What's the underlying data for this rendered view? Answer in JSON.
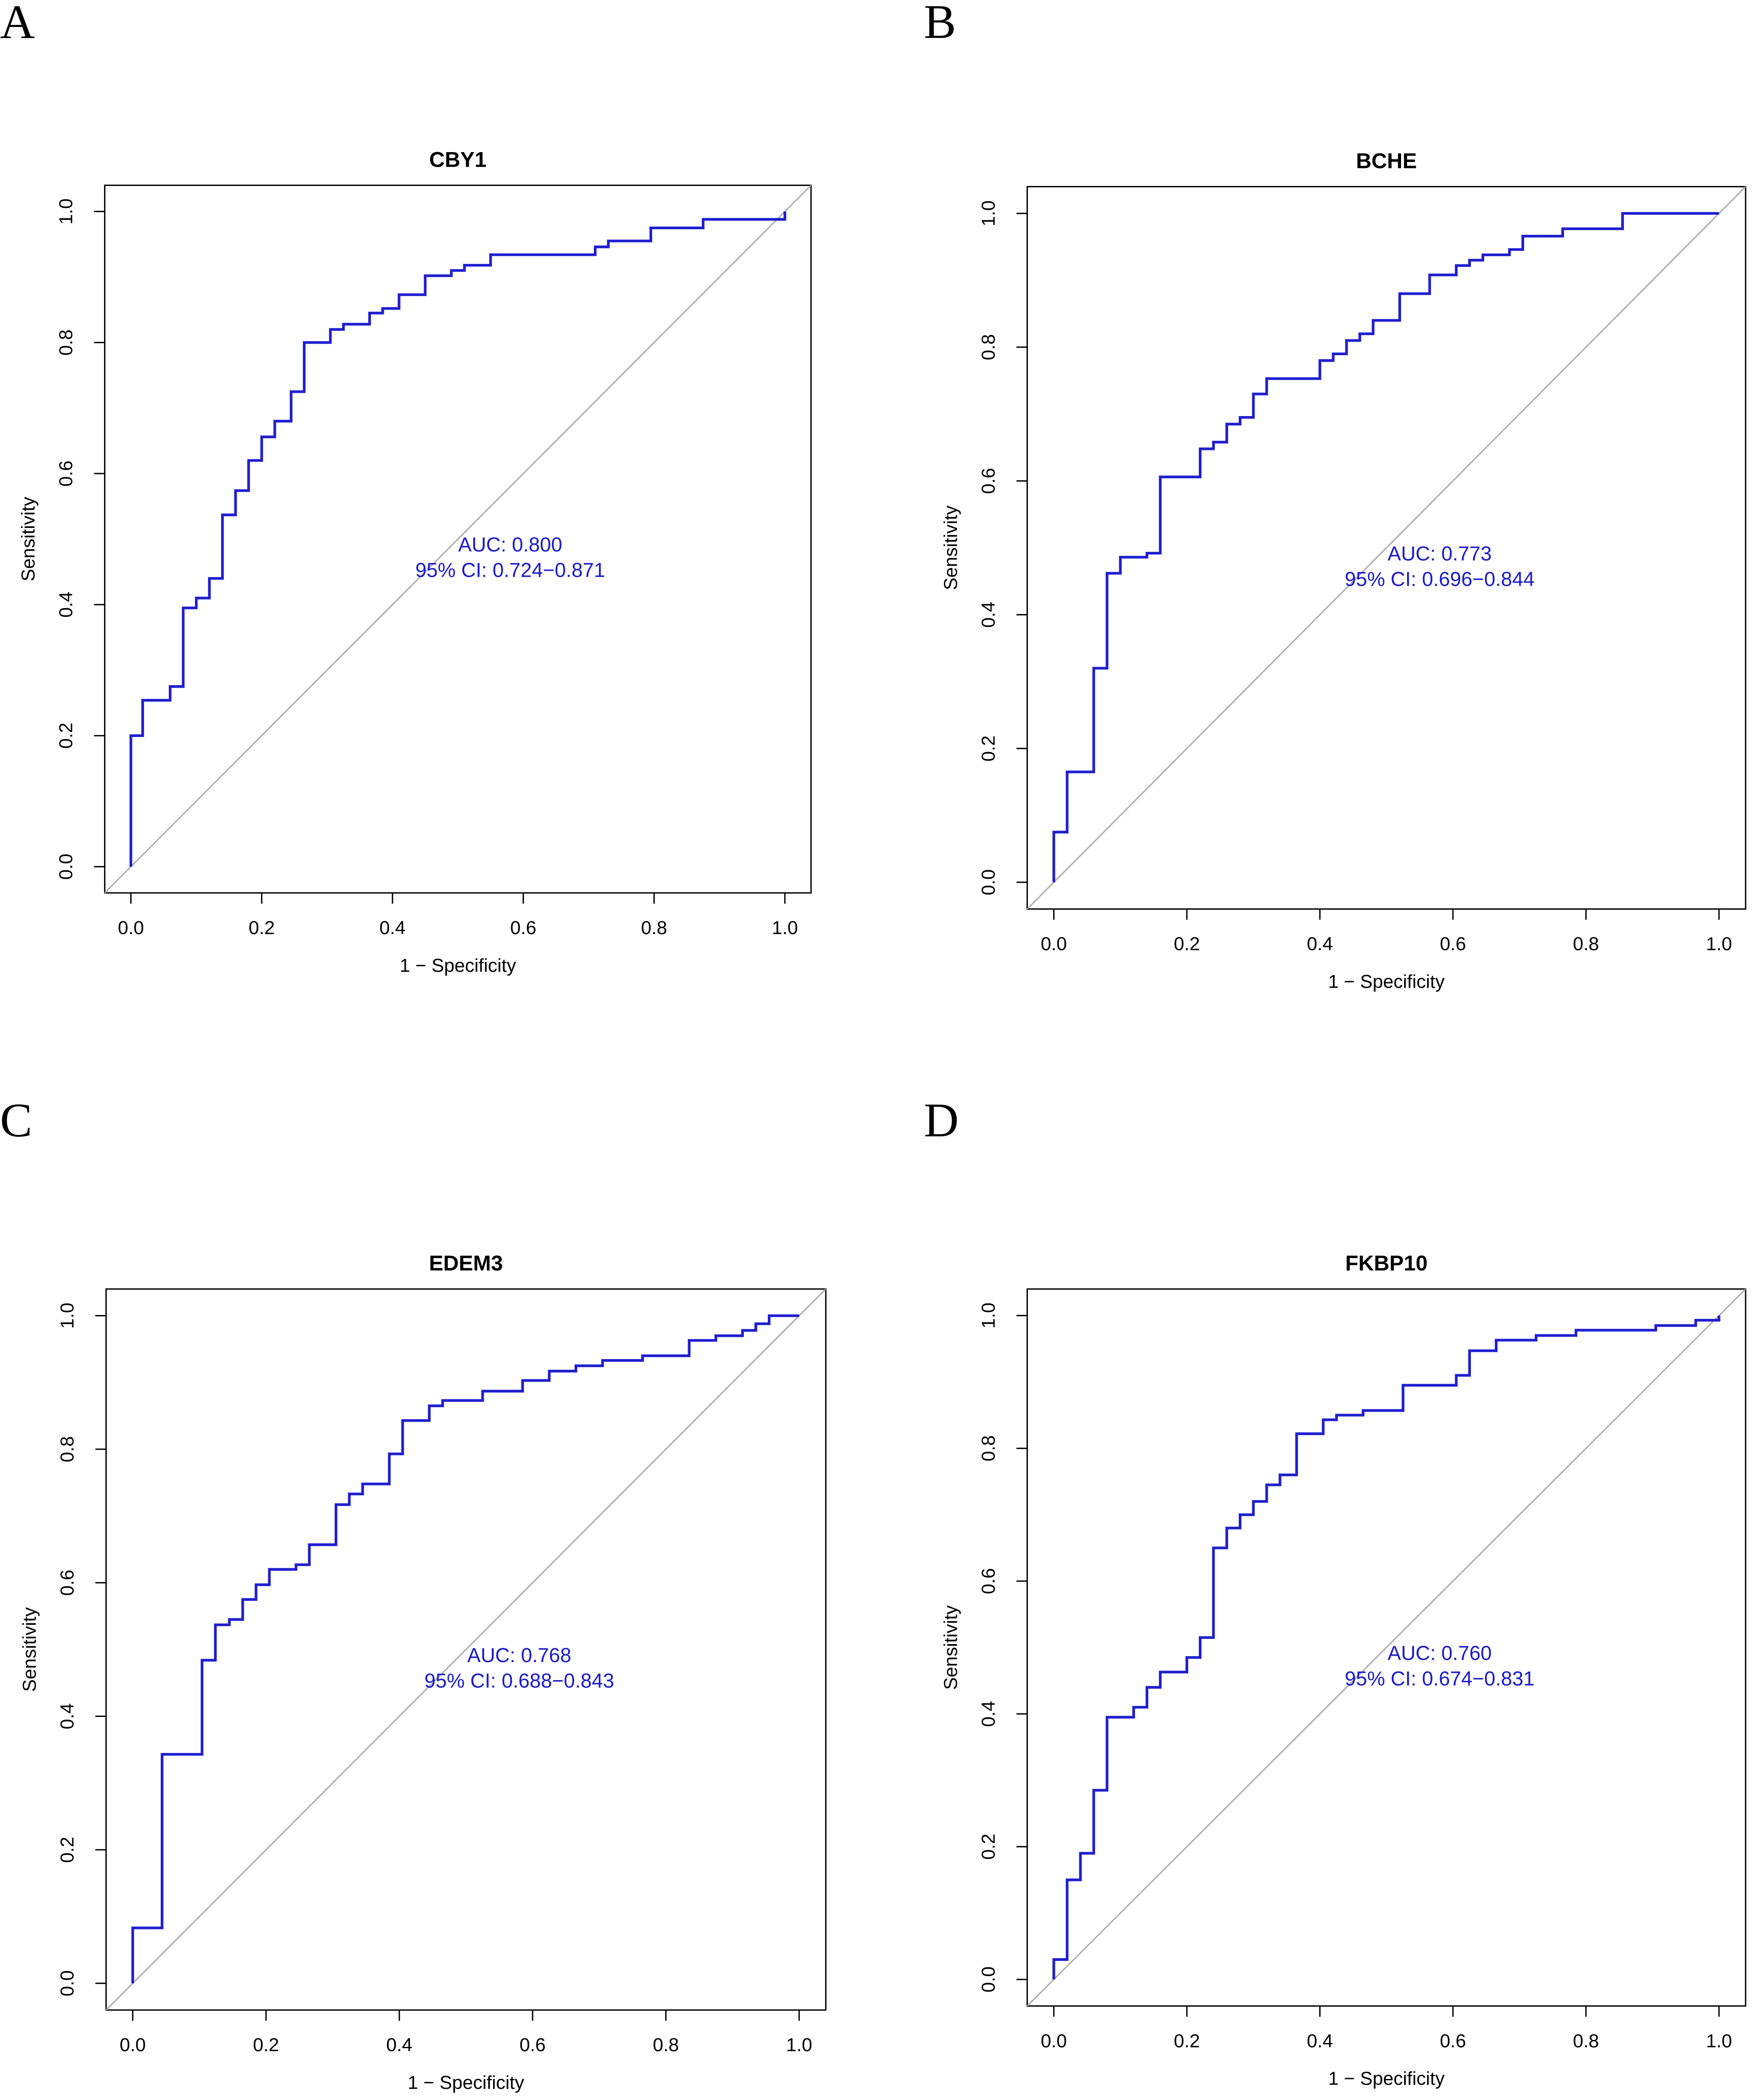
{
  "chart_data": [
    {
      "type": "line",
      "panel": "A",
      "title": "CBY1",
      "xlabel": "1 − Specificity",
      "ylabel": "Sensitivity",
      "annotations": [
        "AUC: 0.800",
        "95% CI: 0.724−0.871"
      ],
      "xlim": [
        -0.04,
        1.04
      ],
      "ylim": [
        -0.04,
        1.04
      ],
      "xticks": [
        {
          "value": 0,
          "label": "0.0"
        },
        0.2,
        0.4,
        0.6,
        0.8,
        {
          "value": 1,
          "label": "1.0"
        }
      ],
      "yticks": [
        {
          "value": 0,
          "label": "0.0"
        },
        0.2,
        0.4,
        0.6,
        0.8,
        {
          "value": 1,
          "label": "1.0"
        }
      ],
      "series": [
        {
          "color": "#1f1fd0",
          "x": [
            0,
            0,
            0.018,
            0.018,
            0.06,
            0.06,
            0.08,
            0.08,
            0.1,
            0.1,
            0.12,
            0.12,
            0.14,
            0.14,
            0.16,
            0.16,
            0.18,
            0.18,
            0.2,
            0.2,
            0.22,
            0.22,
            0.245,
            0.245,
            0.265,
            0.265,
            0.305,
            0.305,
            0.325,
            0.325,
            0.365,
            0.365,
            0.385,
            0.385,
            0.41,
            0.41,
            0.45,
            0.45,
            0.49,
            0.49,
            0.51,
            0.51,
            0.55,
            0.55,
            0.71,
            0.71,
            0.73,
            0.73,
            0.795,
            0.795,
            0.875,
            0.875,
            1,
            1
          ],
          "values": [
            0,
            0.2,
            0.2,
            0.254,
            0.254,
            0.275,
            0.275,
            0.395,
            0.395,
            0.41,
            0.41,
            0.44,
            0.44,
            0.537,
            0.537,
            0.574,
            0.574,
            0.62,
            0.62,
            0.656,
            0.656,
            0.68,
            0.68,
            0.725,
            0.725,
            0.8,
            0.8,
            0.82,
            0.82,
            0.828,
            0.828,
            0.845,
            0.845,
            0.852,
            0.852,
            0.873,
            0.873,
            0.902,
            0.902,
            0.91,
            0.91,
            0.918,
            0.918,
            0.934,
            0.934,
            0.946,
            0.946,
            0.955,
            0.955,
            0.975,
            0.975,
            0.988,
            0.988,
            1
          ]
        }
      ]
    },
    {
      "type": "line",
      "panel": "B",
      "title": "BCHE",
      "xlabel": "1 − Specificity",
      "ylabel": "Sensitivity",
      "annotations": [
        "AUC: 0.773",
        "95% CI: 0.696−0.844"
      ],
      "xlim": [
        -0.04,
        1.04
      ],
      "ylim": [
        -0.04,
        1.04
      ],
      "xticks": [
        {
          "value": 0,
          "label": "0.0"
        },
        0.2,
        0.4,
        0.6,
        0.8,
        {
          "value": 1,
          "label": "1.0"
        }
      ],
      "yticks": [
        {
          "value": 0,
          "label": "0.0"
        },
        0.2,
        0.4,
        0.6,
        0.8,
        {
          "value": 1,
          "label": "1.0"
        }
      ],
      "series": [
        {
          "color": "#1f1fd0",
          "x": [
            0,
            0,
            0.02,
            0.02,
            0.06,
            0.06,
            0.08,
            0.08,
            0.1,
            0.1,
            0.14,
            0.14,
            0.16,
            0.16,
            0.22,
            0.22,
            0.24,
            0.24,
            0.26,
            0.26,
            0.28,
            0.28,
            0.3,
            0.3,
            0.32,
            0.32,
            0.4,
            0.4,
            0.42,
            0.42,
            0.44,
            0.44,
            0.46,
            0.46,
            0.48,
            0.48,
            0.52,
            0.52,
            0.565,
            0.565,
            0.605,
            0.605,
            0.625,
            0.625,
            0.645,
            0.645,
            0.685,
            0.685,
            0.705,
            0.705,
            0.765,
            0.765,
            0.855,
            0.855,
            1,
            1
          ],
          "values": [
            0,
            0.075,
            0.075,
            0.165,
            0.165,
            0.32,
            0.32,
            0.462,
            0.462,
            0.486,
            0.486,
            0.492,
            0.492,
            0.606,
            0.606,
            0.648,
            0.648,
            0.658,
            0.658,
            0.685,
            0.685,
            0.695,
            0.695,
            0.73,
            0.73,
            0.753,
            0.753,
            0.78,
            0.78,
            0.79,
            0.79,
            0.81,
            0.81,
            0.82,
            0.82,
            0.84,
            0.84,
            0.88,
            0.88,
            0.908,
            0.908,
            0.922,
            0.922,
            0.93,
            0.93,
            0.938,
            0.938,
            0.946,
            0.946,
            0.966,
            0.966,
            0.977,
            0.977,
            1,
            1,
            1
          ]
        }
      ]
    },
    {
      "type": "line",
      "panel": "C",
      "title": "EDEM3",
      "xlabel": "1 − Specificity",
      "ylabel": "Sensitivity",
      "annotations": [
        "AUC: 0.768",
        "95% CI: 0.688−0.843"
      ],
      "xlim": [
        -0.04,
        1.04
      ],
      "ylim": [
        -0.04,
        1.04
      ],
      "xticks": [
        {
          "value": 0,
          "label": "0.0"
        },
        0.2,
        0.4,
        0.6,
        0.8,
        {
          "value": 1,
          "label": "1.0"
        }
      ],
      "yticks": [
        {
          "value": 0,
          "label": "0.0"
        },
        0.2,
        0.4,
        0.6,
        0.8,
        {
          "value": 1,
          "label": "1.0"
        }
      ],
      "series": [
        {
          "color": "#1f1fd0",
          "x": [
            0,
            0,
            0.044,
            0.044,
            0.104,
            0.104,
            0.124,
            0.124,
            0.145,
            0.145,
            0.165,
            0.165,
            0.185,
            0.185,
            0.205,
            0.205,
            0.245,
            0.245,
            0.265,
            0.265,
            0.305,
            0.305,
            0.325,
            0.325,
            0.345,
            0.345,
            0.385,
            0.385,
            0.405,
            0.405,
            0.445,
            0.445,
            0.465,
            0.465,
            0.525,
            0.525,
            0.585,
            0.585,
            0.625,
            0.625,
            0.665,
            0.665,
            0.705,
            0.705,
            0.765,
            0.765,
            0.835,
            0.835,
            0.875,
            0.875,
            0.915,
            0.915,
            0.935,
            0.935,
            0.955,
            0.955,
            1,
            1
          ],
          "values": [
            0,
            0.083,
            0.083,
            0.343,
            0.343,
            0.484,
            0.484,
            0.537,
            0.537,
            0.545,
            0.545,
            0.575,
            0.575,
            0.597,
            0.597,
            0.62,
            0.62,
            0.627,
            0.627,
            0.657,
            0.657,
            0.717,
            0.717,
            0.733,
            0.733,
            0.748,
            0.748,
            0.793,
            0.793,
            0.843,
            0.843,
            0.865,
            0.865,
            0.873,
            0.873,
            0.887,
            0.887,
            0.903,
            0.903,
            0.917,
            0.917,
            0.925,
            0.925,
            0.933,
            0.933,
            0.94,
            0.94,
            0.963,
            0.963,
            0.97,
            0.97,
            0.978,
            0.978,
            0.988,
            0.988,
            1,
            1,
            1
          ]
        }
      ]
    },
    {
      "type": "line",
      "panel": "D",
      "title": "FKBP10",
      "xlabel": "1 − Specificity",
      "ylabel": "Sensitivity",
      "annotations": [
        "AUC: 0.760",
        "95% CI: 0.674−0.831"
      ],
      "xlim": [
        -0.04,
        1.04
      ],
      "ylim": [
        -0.04,
        1.04
      ],
      "xticks": [
        {
          "value": 0,
          "label": "0.0"
        },
        0.2,
        0.4,
        0.6,
        0.8,
        {
          "value": 1,
          "label": "1.0"
        }
      ],
      "yticks": [
        {
          "value": 0,
          "label": "0.0"
        },
        0.2,
        0.4,
        0.6,
        0.8,
        {
          "value": 1,
          "label": "1.0"
        }
      ],
      "series": [
        {
          "color": "#1f1fd0",
          "x": [
            0,
            0,
            0.02,
            0.02,
            0.04,
            0.04,
            0.06,
            0.06,
            0.08,
            0.08,
            0.12,
            0.12,
            0.14,
            0.14,
            0.16,
            0.16,
            0.2,
            0.2,
            0.22,
            0.22,
            0.24,
            0.24,
            0.26,
            0.26,
            0.28,
            0.28,
            0.3,
            0.3,
            0.32,
            0.32,
            0.34,
            0.34,
            0.365,
            0.365,
            0.405,
            0.405,
            0.425,
            0.425,
            0.465,
            0.465,
            0.525,
            0.525,
            0.605,
            0.605,
            0.625,
            0.625,
            0.665,
            0.665,
            0.725,
            0.725,
            0.785,
            0.785,
            0.905,
            0.905,
            0.965,
            0.965,
            1,
            1
          ],
          "values": [
            0,
            0.03,
            0.03,
            0.15,
            0.15,
            0.19,
            0.19,
            0.285,
            0.285,
            0.395,
            0.395,
            0.41,
            0.41,
            0.44,
            0.44,
            0.463,
            0.463,
            0.485,
            0.485,
            0.515,
            0.515,
            0.65,
            0.65,
            0.68,
            0.68,
            0.7,
            0.7,
            0.72,
            0.72,
            0.745,
            0.745,
            0.76,
            0.76,
            0.822,
            0.822,
            0.843,
            0.843,
            0.85,
            0.85,
            0.857,
            0.857,
            0.895,
            0.895,
            0.91,
            0.91,
            0.947,
            0.947,
            0.963,
            0.963,
            0.97,
            0.97,
            0.978,
            0.978,
            0.985,
            0.985,
            0.993,
            0.993,
            1
          ]
        }
      ]
    }
  ]
}
